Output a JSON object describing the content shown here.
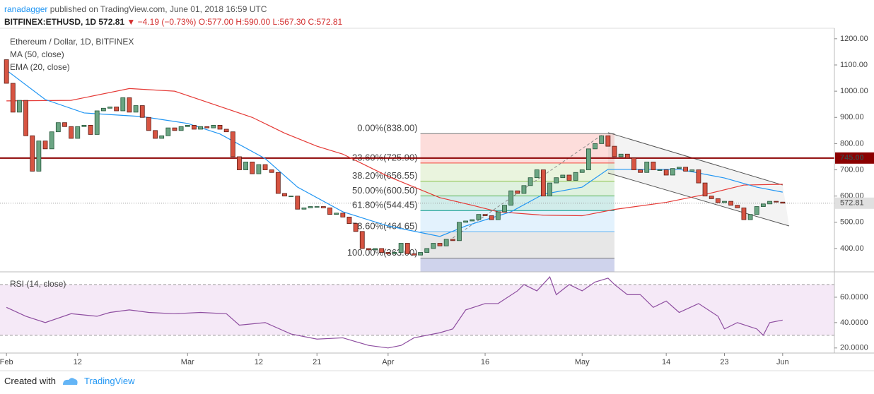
{
  "header": {
    "publisher": "ranadagger",
    "published": "published on TradingView.com, June 01, 2018 16:59 UTC",
    "symbol": "BITFINEX:ETHUSD, 1D",
    "last": "572.81",
    "arrow": "▼",
    "change": "−4.19 (−0.73%)",
    "ohlc": "O:577.00 H:590.00 L:567.30 C:572.81"
  },
  "chart_data": [
    {
      "type": "candlestick",
      "title": "Ethereum / Dollar, 1D, BITFINEX",
      "x": [
        0,
        1,
        2,
        3,
        4,
        5,
        6,
        7,
        8,
        9,
        10,
        11,
        12,
        13,
        14,
        15,
        16,
        17,
        18,
        19,
        20,
        21,
        22,
        23,
        24,
        25,
        26,
        27,
        28,
        29,
        30,
        31,
        32,
        33,
        34,
        35,
        36,
        37,
        38,
        39,
        40,
        41,
        42,
        43,
        44,
        45,
        46,
        47,
        48,
        49,
        50,
        51,
        52,
        53,
        54,
        55,
        56,
        57,
        58,
        59,
        60,
        61,
        62,
        63,
        64,
        65,
        66,
        67,
        68,
        69,
        70,
        71,
        72,
        73,
        74,
        75,
        76,
        77,
        78,
        79,
        80,
        81,
        82,
        83,
        84,
        85,
        86,
        87,
        88,
        89,
        90,
        91,
        92,
        93,
        94,
        95,
        96,
        97,
        98,
        99,
        100,
        101,
        102,
        103,
        104,
        105,
        106,
        107,
        108,
        109,
        110,
        111,
        112,
        113,
        114,
        115,
        116,
        117,
        118,
        119,
        120
      ],
      "open": [
        1120,
        1030,
        920,
        965,
        830,
        695,
        810,
        780,
        845,
        880,
        865,
        820,
        865,
        870,
        835,
        925,
        935,
        940,
        925,
        975,
        920,
        945,
        900,
        850,
        820,
        830,
        860,
        850,
        865,
        870,
        855,
        865,
        860,
        870,
        855,
        845,
        750,
        700,
        730,
        685,
        720,
        700,
        690,
        610,
        600,
        600,
        550,
        555,
        560,
        560,
        555,
        530,
        535,
        520,
        495,
        465,
        400,
        395,
        400,
        385,
        380,
        385,
        420,
        380,
        375,
        385,
        400,
        420,
        410,
        435,
        430,
        500,
        505,
        510,
        530,
        525,
        510,
        540,
        565,
        620,
        610,
        640,
        670,
        700,
        600,
        650,
        670,
        680,
        660,
        690,
        700,
        780,
        800,
        830,
        790,
        750,
        760,
        745,
        700,
        690,
        730,
        700,
        700,
        680,
        705,
        710,
        695,
        700,
        650,
        600,
        590,
        575,
        580,
        565,
        555,
        510,
        530,
        560,
        570,
        580,
        577
      ],
      "close": [
        1030,
        920,
        965,
        830,
        695,
        810,
        780,
        845,
        880,
        865,
        820,
        865,
        870,
        835,
        925,
        935,
        940,
        925,
        975,
        920,
        945,
        900,
        850,
        820,
        830,
        860,
        850,
        865,
        870,
        855,
        865,
        860,
        870,
        855,
        845,
        750,
        700,
        730,
        685,
        720,
        700,
        690,
        610,
        600,
        600,
        550,
        555,
        560,
        560,
        555,
        530,
        535,
        520,
        495,
        465,
        400,
        395,
        400,
        385,
        380,
        385,
        420,
        380,
        375,
        385,
        400,
        420,
        410,
        435,
        430,
        500,
        505,
        510,
        530,
        525,
        510,
        540,
        565,
        620,
        610,
        640,
        670,
        700,
        600,
        650,
        670,
        680,
        660,
        690,
        700,
        780,
        800,
        830,
        790,
        750,
        760,
        745,
        700,
        690,
        730,
        700,
        700,
        680,
        705,
        710,
        695,
        700,
        650,
        600,
        590,
        575,
        580,
        565,
        555,
        510,
        530,
        560,
        570,
        580,
        577,
        572.81
      ],
      "up_color": "#6ba583",
      "down_color": "#d75442",
      "lines": [
        {
          "name": "MA (50, close)",
          "color": "#e53935",
          "x": [
            0,
            10,
            19,
            26,
            32,
            38,
            43,
            48,
            52,
            59,
            67,
            72,
            76,
            83,
            89,
            94,
            102,
            108,
            114,
            120
          ],
          "values": [
            963,
            965,
            1010,
            1000,
            950,
            900,
            840,
            790,
            760,
            675,
            594,
            565,
            540,
            527,
            525,
            549,
            576,
            606,
            642,
            645
          ]
        },
        {
          "name": "EMA (20, close)",
          "color": "#2196f3",
          "x": [
            0,
            6,
            12,
            21,
            28,
            33,
            40,
            45,
            52,
            59,
            67,
            71,
            78,
            83,
            89,
            93,
            100,
            104,
            111,
            116,
            120
          ],
          "values": [
            1080,
            968,
            917,
            903,
            877,
            837,
            743,
            634,
            540,
            486,
            446,
            486,
            540,
            607,
            634,
            702,
            702,
            702,
            669,
            634,
            615
          ]
        }
      ],
      "fibonacci": {
        "x": [
          64,
          94
        ],
        "below_color": "#9fa8da",
        "levels": [
          {
            "value": 838,
            "label": "0.00%(838.00)",
            "color": "#787878"
          },
          {
            "value": 725.9,
            "label": "23.60%(725.90)",
            "color": "#f44336"
          },
          {
            "value": 656.55,
            "label": "38.20%(656.55)",
            "color": "#8bc34a"
          },
          {
            "value": 600.5,
            "label": "50.00%(600.50)",
            "color": "#4caf50"
          },
          {
            "value": 544.45,
            "label": "61.80%(544.45)",
            "color": "#009688"
          },
          {
            "value": 464.65,
            "label": "78.60%(464.65)",
            "color": "#64b5f6"
          },
          {
            "value": 363,
            "label": "100.00%(363.00)",
            "color": "#787878"
          }
        ]
      },
      "channel": {
        "upper": {
          "x": [
            93,
            120
          ],
          "values": [
            842,
            642
          ]
        },
        "lower": {
          "x": [
            93,
            121
          ],
          "values": [
            688,
            486
          ]
        }
      },
      "trendline": {
        "x": [
          69,
          92
        ],
        "values": [
          440,
          832
        ]
      },
      "hline": {
        "value": 745,
        "label": "745.00",
        "color": "#8b0000"
      },
      "last_price": {
        "value": 572.81,
        "label": "572.81"
      },
      "xlim": [
        -1,
        128
      ],
      "ylim": [
        311,
        1240
      ],
      "yticks": [
        {
          "value": 400,
          "label": "400.00"
        },
        {
          "value": 500,
          "label": "500.00"
        },
        {
          "value": 600,
          "label": "600.00"
        },
        {
          "value": 700,
          "label": "700.00"
        },
        {
          "value": 800,
          "label": "800.00"
        },
        {
          "value": 900,
          "label": "900.00"
        },
        {
          "value": 1000,
          "label": "1000.00"
        },
        {
          "value": 1100,
          "label": "1100.00"
        },
        {
          "value": 1200,
          "label": "1200.00"
        }
      ]
    },
    {
      "type": "line",
      "title": "RSI (14, close)",
      "color": "#8e4ea0",
      "x": [
        0,
        3,
        6,
        10,
        14,
        16,
        19,
        22,
        26,
        30,
        34,
        36,
        40,
        44,
        48,
        52,
        56,
        59,
        61,
        63,
        67,
        69,
        71,
        74,
        76,
        79,
        80,
        82,
        84,
        85,
        87,
        89,
        91,
        93,
        94,
        96,
        98,
        100,
        102,
        104,
        107,
        110,
        111,
        113,
        116,
        117,
        118,
        120
      ],
      "values": [
        52,
        45,
        40,
        47,
        45,
        48,
        50,
        48,
        47,
        48,
        47,
        38,
        40,
        31,
        27,
        28,
        22,
        20,
        22,
        28,
        32,
        35,
        50,
        55,
        55,
        65,
        70,
        65,
        76,
        62,
        70,
        65,
        72,
        75,
        70,
        62,
        62,
        52,
        57,
        48,
        55,
        45,
        35,
        40,
        35,
        30,
        40,
        42
      ],
      "band": [
        30,
        70
      ],
      "band_color": "#9c27b0",
      "xlim": [
        -1,
        128
      ],
      "ylim": [
        16,
        80
      ],
      "yticks": [
        {
          "value": 20,
          "label": "20.0000"
        },
        {
          "value": 40,
          "label": "40.0000"
        },
        {
          "value": 60,
          "label": "60.0000"
        }
      ],
      "xticks": [
        {
          "value": 0,
          "label": "Feb"
        },
        {
          "value": 11,
          "label": "12"
        },
        {
          "value": 28,
          "label": "Mar"
        },
        {
          "value": 39,
          "label": "12"
        },
        {
          "value": 48,
          "label": "21"
        },
        {
          "value": 59,
          "label": "Apr"
        },
        {
          "value": 74,
          "label": "16"
        },
        {
          "value": 89,
          "label": "May"
        },
        {
          "value": 102,
          "label": "14"
        },
        {
          "value": 111,
          "label": "23"
        },
        {
          "value": 120,
          "label": "Jun"
        }
      ]
    }
  ],
  "footer": {
    "created": "Created with",
    "brand": "TradingView"
  }
}
